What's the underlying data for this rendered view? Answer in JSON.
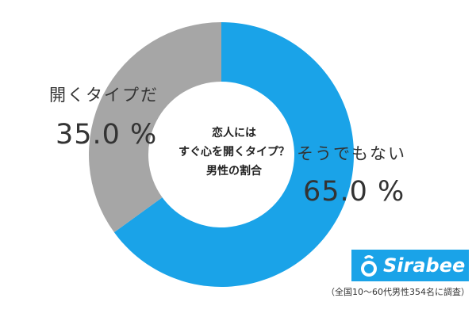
{
  "chart_data": {
    "type": "pie",
    "title": "恋人には\nすぐ心を開くタイプ？\n男性の割合",
    "slices": [
      {
        "label": "そうでもない",
        "value": 65.0,
        "value_label": "65.0 %",
        "color": "#1aa3e8"
      },
      {
        "label": "開くタイプだ",
        "value": 35.0,
        "value_label": "35.0 %",
        "color": "#a6a6a6"
      }
    ]
  },
  "brand": {
    "name": "Sirabee",
    "color": "#1aa3e8"
  },
  "footnote": "（全国10～60代男性354名に調査）"
}
